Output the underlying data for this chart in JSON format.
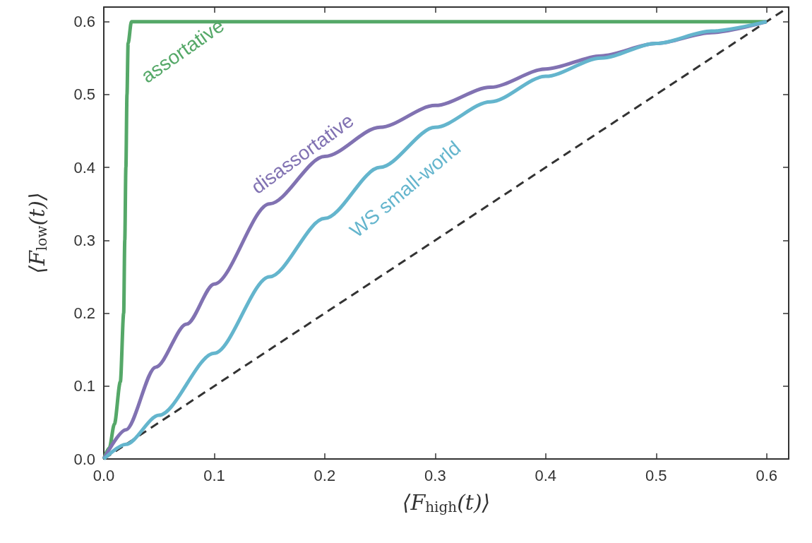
{
  "chart_data": {
    "type": "line",
    "xlabel": "⟨F$_{high}$(t)⟩",
    "ylabel": "⟨F$_{low}$(t)⟩",
    "xlim": [
      0,
      0.62
    ],
    "ylim": [
      0,
      0.62
    ],
    "xticks": [
      {
        "value": 0,
        "label": "0.0"
      },
      0.1,
      0.2,
      0.3,
      0.4,
      0.5,
      0.6
    ],
    "yticks": [
      {
        "value": 0,
        "label": "0.0"
      },
      0.1,
      0.2,
      0.3,
      0.4,
      0.5,
      0.6
    ],
    "grid": false,
    "legend": false,
    "marker": "none",
    "series": [
      {
        "name": "assortative",
        "color": "#55a868",
        "x": [
          0,
          0.005,
          0.0096,
          0.015,
          0.018,
          0.019,
          0.02,
          0.021,
          0.022,
          0.025,
          0.6
        ],
        "values": [
          0,
          0.015,
          0.048,
          0.106,
          0.2,
          0.3,
          0.4,
          0.5,
          0.57,
          0.6,
          0.6
        ]
      },
      {
        "name": "disassortative",
        "color": "#8172b2",
        "x": [
          0,
          0.02,
          0.047,
          0.075,
          0.1,
          0.15,
          0.2,
          0.25,
          0.3,
          0.35,
          0.4,
          0.45,
          0.5,
          0.55,
          0.6
        ],
        "values": [
          0,
          0.04,
          0.126,
          0.185,
          0.24,
          0.35,
          0.415,
          0.455,
          0.485,
          0.51,
          0.535,
          0.553,
          0.57,
          0.585,
          0.6
        ]
      },
      {
        "name": "WS small-world",
        "color": "#64b5cd",
        "x": [
          0,
          0.02,
          0.05,
          0.1,
          0.15,
          0.2,
          0.25,
          0.3,
          0.35,
          0.4,
          0.45,
          0.5,
          0.55,
          0.6
        ],
        "values": [
          0,
          0.02,
          0.06,
          0.145,
          0.25,
          0.33,
          0.4,
          0.455,
          0.49,
          0.525,
          0.55,
          0.57,
          0.587,
          0.6
        ]
      },
      {
        "color": "#333333",
        "line_style": "dashed",
        "x": [
          0,
          0.62
        ],
        "values": [
          0,
          0.62
        ]
      }
    ]
  }
}
